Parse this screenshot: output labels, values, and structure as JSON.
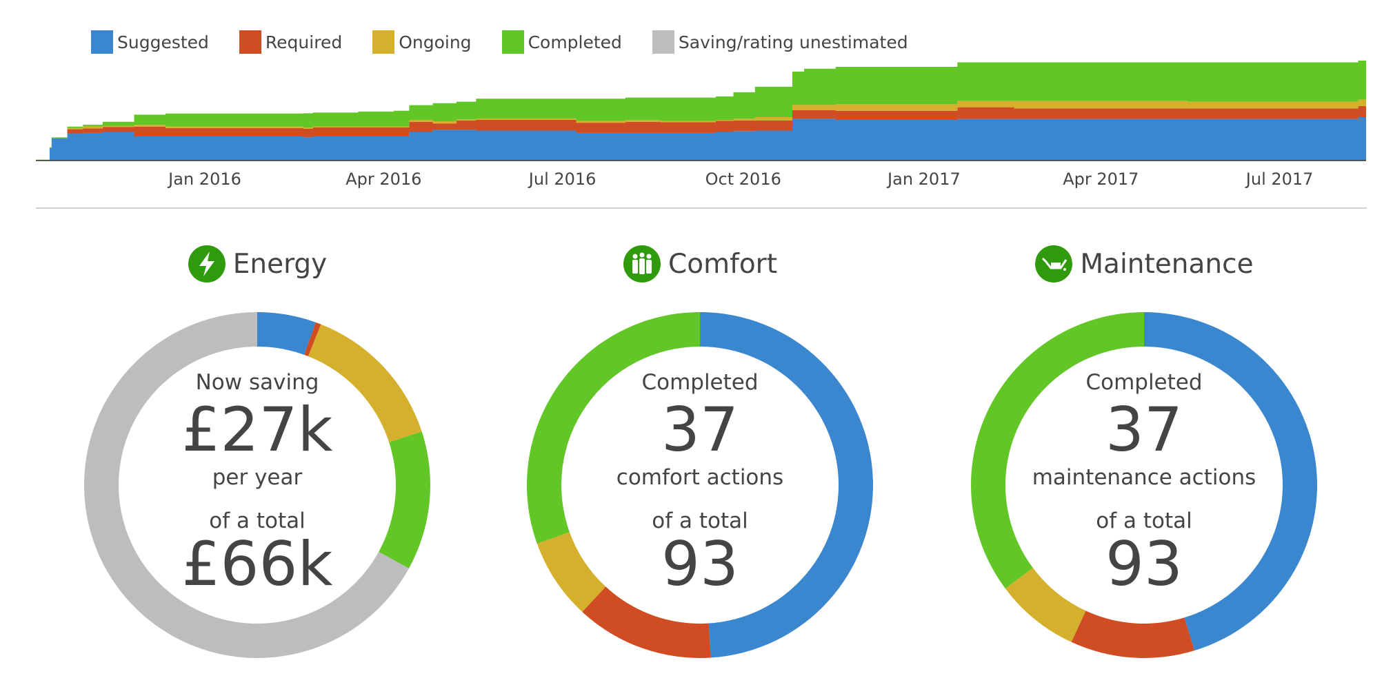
{
  "colors": {
    "suggested": "#3a86cf",
    "required": "#d04c23",
    "ongoing": "#d5b02c",
    "completed": "#62c626",
    "unestimated": "#bdbdbd",
    "icon_green": "#2e9a0c"
  },
  "chart_data": [
    {
      "type": "area",
      "stacked": true,
      "step": true,
      "legend_position": "top-left",
      "grid": false,
      "title": "",
      "xlabel": "",
      "ylabel": "",
      "xlim": [
        "2015-10-07",
        "2017-08-14"
      ],
      "ylim": [
        0,
        115
      ],
      "x_ticks": [
        "Jan 2016",
        "Apr 2016",
        "Jul 2016",
        "Oct 2016",
        "Jan 2017",
        "Apr 2017",
        "Jul 2017"
      ],
      "x_tick_dates": [
        "2016-01-01",
        "2016-04-01",
        "2016-07-01",
        "2016-10-01",
        "2017-01-01",
        "2017-04-01",
        "2017-07-01"
      ],
      "legend": [
        "Suggested",
        "Required",
        "Ongoing",
        "Completed",
        "Saving/rating unestimated"
      ],
      "x": [
        "2015-10-07",
        "2015-10-14",
        "2015-10-15",
        "2015-10-23",
        "2015-10-31",
        "2015-11-10",
        "2015-11-26",
        "2015-12-12",
        "2016-02-20",
        "2016-02-25",
        "2016-03-19",
        "2016-04-06",
        "2016-04-14",
        "2016-04-26",
        "2016-05-08",
        "2016-05-18",
        "2016-07-08",
        "2016-08-02",
        "2016-08-20",
        "2016-09-17",
        "2016-09-26",
        "2016-10-07",
        "2016-10-26",
        "2016-11-01",
        "2016-11-17",
        "2017-01-18",
        "2017-02-16",
        "2017-05-15",
        "2017-08-10"
      ],
      "series": [
        {
          "name": "Suggested",
          "values": [
            0,
            14,
            25,
            30.5,
            31,
            32,
            27,
            27,
            26,
            27,
            27,
            27,
            32,
            34.4,
            34.4,
            33.6,
            31,
            31,
            31,
            32,
            33,
            33.6,
            46.8,
            46.8,
            45.5,
            46.5,
            46.5,
            46.5,
            48.6
          ]
        },
        {
          "name": "Required",
          "values": [
            0,
            0,
            0,
            4.5,
            5,
            5.7,
            11,
            9.4,
            9.7,
            10,
            10,
            10,
            11.4,
            7.2,
            10.6,
            11.9,
            11.4,
            12.4,
            11.9,
            12.4,
            12,
            11.4,
            9.5,
            9.5,
            10.3,
            13.2,
            11.9,
            11.9,
            12.4
          ]
        },
        {
          "name": "Ongoing",
          "values": [
            0,
            0,
            0,
            1.4,
            2,
            1.3,
            2,
            1.6,
            1.3,
            1,
            1,
            1,
            2.1,
            2.4,
            1,
            1.5,
            2,
            1.8,
            1.3,
            1.1,
            1.8,
            3.6,
            6,
            6,
            7.2,
            7.2,
            8.5,
            7.5,
            7.2
          ]
        },
        {
          "name": "Completed",
          "values": [
            1,
            1,
            1,
            1.6,
            2,
            4.4,
            11.4,
            14.7,
            16,
            15.7,
            16.8,
            17.8,
            16.5,
            20.3,
            19.9,
            22.3,
            24.9,
            25.3,
            26.3,
            26.3,
            29.7,
            34.1,
            37.4,
            40.5,
            42,
            43.1,
            43.1,
            44.1,
            43.8
          ]
        }
      ]
    },
    {
      "type": "pie",
      "donut": true,
      "title": "Energy",
      "segments_percent": {
        "Suggested": 5.5,
        "Required": 0.5,
        "Ongoing": 14,
        "Completed": 13,
        "Saving/rating unestimated": 67
      }
    },
    {
      "type": "pie",
      "donut": true,
      "title": "Comfort",
      "segments_percent": {
        "Suggested": 49,
        "Required": 12.9,
        "Ongoing": 7.6,
        "Completed": 30.5
      }
    },
    {
      "type": "pie",
      "donut": true,
      "title": "Maintenance",
      "segments_percent": {
        "Suggested": 45.3,
        "Required": 11.6,
        "Ongoing": 7.9,
        "Completed": 35.2
      }
    }
  ],
  "panels": [
    {
      "title": "Energy",
      "icon": "lightning-icon",
      "line1": "Now saving",
      "value": "£27k",
      "line2": "per year",
      "line3": "of a total",
      "total": "£66k"
    },
    {
      "title": "Comfort",
      "icon": "people-icon",
      "line1": "Completed",
      "value": "37",
      "line2": "comfort actions",
      "line3": "of a total",
      "total": "93"
    },
    {
      "title": "Maintenance",
      "icon": "oil-can-icon",
      "line1": "Completed",
      "value": "37",
      "line2": "maintenance actions",
      "line3": "of a total",
      "total": "93"
    }
  ]
}
